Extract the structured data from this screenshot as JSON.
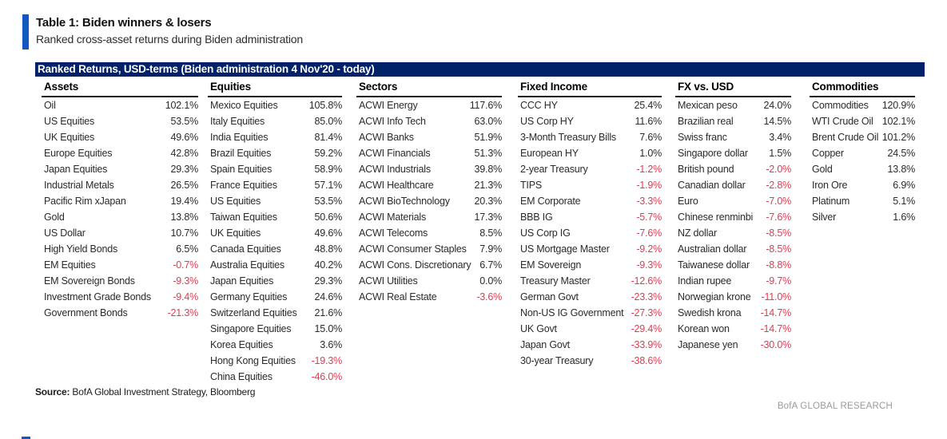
{
  "header": {
    "title": "Table 1: Biden winners & losers",
    "subtitle": "Ranked cross-asset returns during Biden administration",
    "banner": "Ranked Returns, USD-terms (Biden administration 4 Nov'20 - today)"
  },
  "footer": {
    "source_label": "Source:",
    "source_text": " BofA Global Investment Strategy, Bloomberg",
    "brand": "BofA GLOBAL RESEARCH"
  },
  "colors": {
    "accent_blue": "#1159C1",
    "banner_navy": "#012169",
    "negative_red": "#E8384F",
    "brand_gray": "#9B9B9B"
  },
  "table": {
    "columns": [
      {
        "header": "Assets",
        "rows": [
          {
            "label": "Oil",
            "value": "102.1%"
          },
          {
            "label": "US Equities",
            "value": "53.5%"
          },
          {
            "label": "UK Equities",
            "value": "49.6%"
          },
          {
            "label": "Europe Equities",
            "value": "42.8%"
          },
          {
            "label": "Japan Equities",
            "value": "29.3%"
          },
          {
            "label": "Industrial Metals",
            "value": "26.5%"
          },
          {
            "label": "Pacific Rim xJapan",
            "value": "19.4%"
          },
          {
            "label": "Gold",
            "value": "13.8%"
          },
          {
            "label": "US Dollar",
            "value": "10.7%"
          },
          {
            "label": "High Yield Bonds",
            "value": "6.5%"
          },
          {
            "label": "EM Equities",
            "value": "-0.7%"
          },
          {
            "label": "EM Sovereign Bonds",
            "value": "-9.3%"
          },
          {
            "label": "Investment Grade Bonds",
            "value": "-9.4%"
          },
          {
            "label": "Government Bonds",
            "value": "-21.3%"
          }
        ]
      },
      {
        "header": "Equities",
        "rows": [
          {
            "label": "Mexico Equities",
            "value": "105.8%"
          },
          {
            "label": "Italy Equities",
            "value": "85.0%"
          },
          {
            "label": "India Equities",
            "value": "81.4%"
          },
          {
            "label": "Brazil Equities",
            "value": "59.2%"
          },
          {
            "label": "Spain Equities",
            "value": "58.9%"
          },
          {
            "label": "France Equities",
            "value": "57.1%"
          },
          {
            "label": "US Equities",
            "value": "53.5%"
          },
          {
            "label": "Taiwan Equities",
            "value": "50.6%"
          },
          {
            "label": "UK Equities",
            "value": "49.6%"
          },
          {
            "label": "Canada Equities",
            "value": "48.8%"
          },
          {
            "label": "Australia Equities",
            "value": "40.2%"
          },
          {
            "label": "Japan Equities",
            "value": "29.3%"
          },
          {
            "label": "Germany Equities",
            "value": "24.6%"
          },
          {
            "label": "Switzerland Equities",
            "value": "21.6%"
          },
          {
            "label": "Singapore Equities",
            "value": "15.0%"
          },
          {
            "label": "Korea Equities",
            "value": "3.6%"
          },
          {
            "label": "Hong Kong Equities",
            "value": "-19.3%"
          },
          {
            "label": "China Equities",
            "value": "-46.0%"
          }
        ]
      },
      {
        "header": "Sectors",
        "rows": [
          {
            "label": "ACWI Energy",
            "value": "117.6%"
          },
          {
            "label": "ACWI Info Tech",
            "value": "63.0%"
          },
          {
            "label": "ACWI Banks",
            "value": "51.9%"
          },
          {
            "label": "ACWI Financials",
            "value": "51.3%"
          },
          {
            "label": "ACWI Industrials",
            "value": "39.8%"
          },
          {
            "label": "ACWI Healthcare",
            "value": "21.3%"
          },
          {
            "label": "ACWI BioTechnology",
            "value": "20.3%"
          },
          {
            "label": "ACWI Materials",
            "value": "17.3%"
          },
          {
            "label": "ACWI Telecoms",
            "value": "8.5%"
          },
          {
            "label": "ACWI Consumer Staples",
            "value": "7.9%"
          },
          {
            "label": "ACWI Cons. Discretionary",
            "value": "6.7%"
          },
          {
            "label": "ACWI Utilities",
            "value": "0.0%"
          },
          {
            "label": "ACWI Real Estate",
            "value": "-3.6%"
          }
        ]
      },
      {
        "header": "Fixed Income",
        "rows": [
          {
            "label": "CCC HY",
            "value": "25.4%"
          },
          {
            "label": "US Corp HY",
            "value": "11.6%"
          },
          {
            "label": "3-Month Treasury Bills",
            "value": "7.6%"
          },
          {
            "label": "European HY",
            "value": "1.0%"
          },
          {
            "label": "2-year Treasury",
            "value": "-1.2%"
          },
          {
            "label": "TIPS",
            "value": "-1.9%"
          },
          {
            "label": "EM Corporate",
            "value": "-3.3%"
          },
          {
            "label": "BBB IG",
            "value": "-5.7%"
          },
          {
            "label": "US Corp IG",
            "value": "-7.6%"
          },
          {
            "label": "US Mortgage Master",
            "value": "-9.2%"
          },
          {
            "label": "EM Sovereign",
            "value": "-9.3%"
          },
          {
            "label": "Treasury Master",
            "value": "-12.6%"
          },
          {
            "label": "German Govt",
            "value": "-23.3%"
          },
          {
            "label": "Non-US IG Government",
            "value": "-27.3%"
          },
          {
            "label": "UK Govt",
            "value": "-29.4%"
          },
          {
            "label": "Japan Govt",
            "value": "-33.9%"
          },
          {
            "label": "30-year Treasury",
            "value": "-38.6%"
          }
        ]
      },
      {
        "header": "FX vs. USD",
        "rows": [
          {
            "label": "Mexican peso",
            "value": "24.0%"
          },
          {
            "label": "Brazilian real",
            "value": "14.5%"
          },
          {
            "label": "Swiss franc",
            "value": "3.4%"
          },
          {
            "label": "Singapore dollar",
            "value": "1.5%"
          },
          {
            "label": "British pound",
            "value": "-2.0%"
          },
          {
            "label": "Canadian dollar",
            "value": "-2.8%"
          },
          {
            "label": "Euro",
            "value": "-7.0%"
          },
          {
            "label": "Chinese renminbi",
            "value": "-7.6%"
          },
          {
            "label": "NZ dollar",
            "value": "-8.5%"
          },
          {
            "label": "Australian dollar",
            "value": "-8.5%"
          },
          {
            "label": "Taiwanese dollar",
            "value": "-8.8%"
          },
          {
            "label": "Indian rupee",
            "value": "-9.7%"
          },
          {
            "label": "Norwegian krone",
            "value": "-11.0%"
          },
          {
            "label": "Swedish krona",
            "value": "-14.7%"
          },
          {
            "label": "Korean won",
            "value": "-14.7%"
          },
          {
            "label": "Japanese yen",
            "value": "-30.0%"
          }
        ]
      },
      {
        "header": "Commodities",
        "rows": [
          {
            "label": "Commodities",
            "value": "120.9%"
          },
          {
            "label": "WTI Crude Oil",
            "value": "102.1%"
          },
          {
            "label": "Brent Crude Oil",
            "value": "101.2%"
          },
          {
            "label": "Copper",
            "value": "24.5%"
          },
          {
            "label": "Gold",
            "value": "13.8%"
          },
          {
            "label": "Iron Ore",
            "value": "6.9%"
          },
          {
            "label": "Platinum",
            "value": "5.1%"
          },
          {
            "label": "Silver",
            "value": "1.6%"
          }
        ]
      }
    ]
  }
}
